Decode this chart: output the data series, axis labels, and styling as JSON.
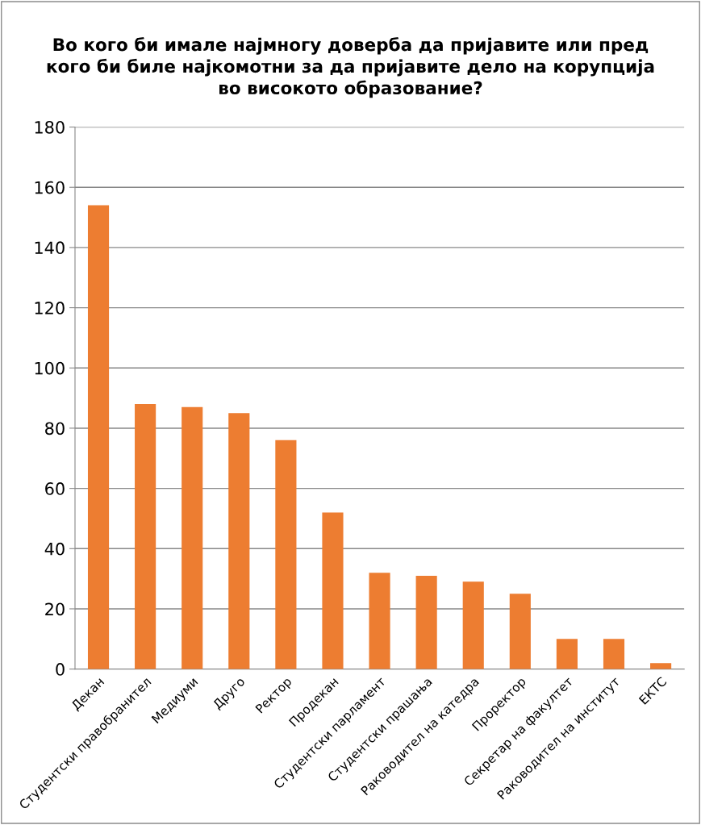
{
  "chart_data": {
    "type": "bar",
    "title": "Во кого би имале најмногу доверба да пријавите или пред\nкого би биле најкомотни за да пријавите дело на корупција\nво високото образование?",
    "categories": [
      "Декан",
      "Студентски правобранител",
      "Медиуми",
      "Друго",
      "Ректор",
      "Продекан",
      "Студентски парламент",
      "Студентски прашања",
      "Раководител на катедра",
      "Проректор",
      "Секретар на факултет",
      "Раководител на институт",
      "ЕКТС"
    ],
    "values": [
      154,
      88,
      87,
      85,
      76,
      52,
      32,
      31,
      29,
      25,
      10,
      10,
      2
    ],
    "color": "#ed7d31",
    "ylim": [
      0,
      180
    ],
    "yticks": [
      0,
      20,
      40,
      60,
      80,
      100,
      120,
      140,
      160,
      180
    ],
    "grid": "y",
    "legend": false
  }
}
